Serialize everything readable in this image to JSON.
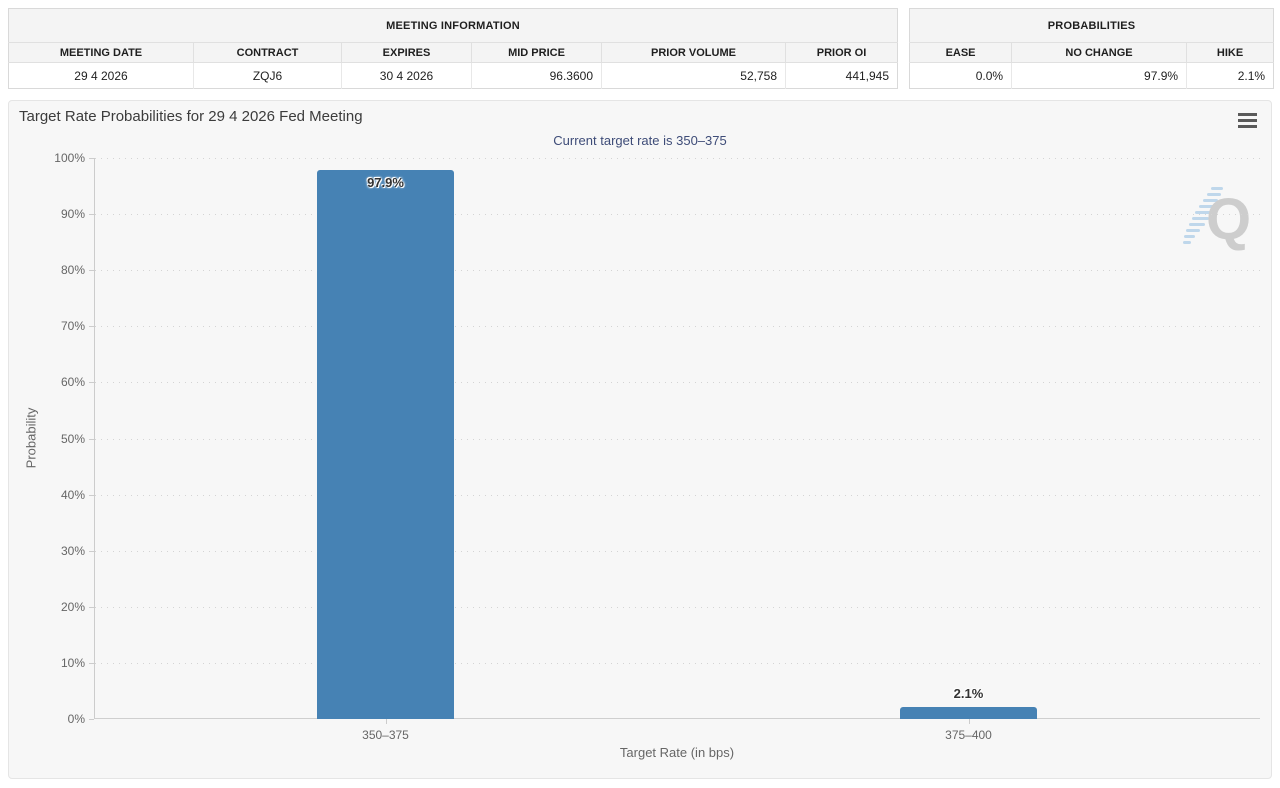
{
  "meeting_information": {
    "title": "MEETING INFORMATION",
    "columns": [
      "MEETING DATE",
      "CONTRACT",
      "EXPIRES",
      "MID PRICE",
      "PRIOR VOLUME",
      "PRIOR OI"
    ],
    "row": {
      "meeting_date": "29 4 2026",
      "contract": "ZQJ6",
      "expires": "30 4 2026",
      "mid_price": "96.3600",
      "prior_volume": "52,758",
      "prior_oi": "441,945"
    }
  },
  "probabilities": {
    "title": "PROBABILITIES",
    "columns": [
      "EASE",
      "NO CHANGE",
      "HIKE"
    ],
    "row": {
      "ease": "0.0%",
      "no_change": "97.9%",
      "hike": "2.1%"
    }
  },
  "chart_data": {
    "type": "bar",
    "title": "Target Rate Probabilities for 29 4 2026 Fed Meeting",
    "subtitle": "Current target rate is 350–375",
    "categories": [
      "350–375",
      "375–400"
    ],
    "values": [
      97.9,
      2.1
    ],
    "value_labels": [
      "97.9%",
      "2.1%"
    ],
    "xlabel": "Target Rate (in bps)",
    "ylabel": "Probability",
    "ylim": [
      0,
      100
    ],
    "ytick_labels": [
      "0%",
      "10%",
      "20%",
      "30%",
      "40%",
      "50%",
      "60%",
      "70%",
      "80%",
      "90%",
      "100%"
    ],
    "grid": "dotted horizontal",
    "legend": "none",
    "bar_color": "#4682b4",
    "watermark_letter": "Q"
  }
}
